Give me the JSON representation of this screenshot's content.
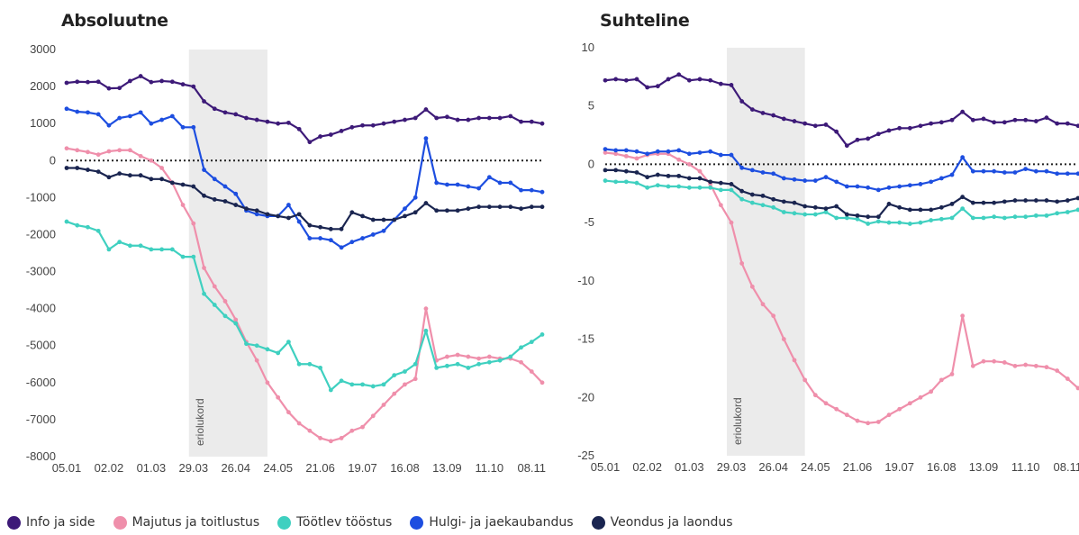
{
  "chart_data": [
    {
      "type": "line",
      "title": "Absoluutne",
      "x": [
        "05.01",
        "12.01",
        "19.01",
        "26.01",
        "02.02",
        "09.02",
        "16.02",
        "23.02",
        "01.03",
        "08.03",
        "15.03",
        "22.03",
        "29.03",
        "05.04",
        "12.04",
        "19.04",
        "26.04",
        "03.05",
        "10.05",
        "17.05",
        "24.05",
        "31.05",
        "07.06",
        "14.06",
        "21.06",
        "28.06",
        "05.07",
        "12.07",
        "19.07",
        "26.07",
        "02.08",
        "09.08",
        "16.08",
        "23.08",
        "30.08",
        "06.09",
        "13.09",
        "20.09",
        "27.09",
        "04.10",
        "11.10",
        "18.10",
        "25.10",
        "01.11",
        "08.11",
        "15.11"
      ],
      "xticks": [
        "05.01",
        "02.02",
        "01.03",
        "29.03",
        "26.04",
        "24.05",
        "21.06",
        "19.07",
        "16.08",
        "13.09",
        "11.10",
        "08.11"
      ],
      "yticks": [
        3000,
        2000,
        1000,
        0,
        -1000,
        -2000,
        -3000,
        -4000,
        -5000,
        -6000,
        -7000,
        -8000
      ],
      "ylim": [
        -8000,
        3000
      ],
      "zero_line": "dotted",
      "shaded_region": {
        "from": "26.03",
        "to": "17.05",
        "label": "eriolukord"
      },
      "series": [
        {
          "name": "Info ja side",
          "color": "#3d1a78",
          "values": [
            2100,
            2130,
            2120,
            2130,
            1950,
            1960,
            2150,
            2280,
            2120,
            2150,
            2130,
            2060,
            2000,
            1600,
            1400,
            1300,
            1250,
            1150,
            1100,
            1050,
            1000,
            1020,
            850,
            500,
            650,
            700,
            800,
            900,
            950,
            950,
            1000,
            1050,
            1100,
            1150,
            1380,
            1150,
            1180,
            1100,
            1100,
            1150,
            1150,
            1150,
            1200,
            1050,
            1050,
            1000
          ]
        },
        {
          "name": "Majutus ja toitlustus",
          "color": "#ef8fab",
          "values": [
            330,
            280,
            230,
            160,
            250,
            280,
            280,
            120,
            0,
            -200,
            -600,
            -1200,
            -1700,
            -2900,
            -3400,
            -3800,
            -4300,
            -4900,
            -5400,
            -6000,
            -6400,
            -6800,
            -7100,
            -7300,
            -7500,
            -7580,
            -7500,
            -7300,
            -7200,
            -6900,
            -6600,
            -6300,
            -6050,
            -5900,
            -4000,
            -5400,
            -5300,
            -5250,
            -5300,
            -5350,
            -5300,
            -5350,
            -5350,
            -5450,
            -5700,
            -6000
          ]
        },
        {
          "name": "Töötlev tööstus",
          "color": "#3fd0c0",
          "values": [
            -1650,
            -1750,
            -1800,
            -1900,
            -2400,
            -2200,
            -2300,
            -2300,
            -2400,
            -2400,
            -2400,
            -2600,
            -2600,
            -3600,
            -3900,
            -4200,
            -4400,
            -4950,
            -5000,
            -5100,
            -5200,
            -4900,
            -5500,
            -5500,
            -5600,
            -6200,
            -5950,
            -6050,
            -6050,
            -6100,
            -6050,
            -5800,
            -5700,
            -5500,
            -4600,
            -5600,
            -5550,
            -5500,
            -5600,
            -5500,
            -5450,
            -5400,
            -5300,
            -5050,
            -4900,
            -4700
          ]
        },
        {
          "name": "Hulgi- ja jaekaubandus",
          "color": "#1d4ee0",
          "values": [
            1400,
            1320,
            1300,
            1250,
            950,
            1150,
            1200,
            1300,
            1000,
            1100,
            1200,
            900,
            900,
            -250,
            -500,
            -700,
            -900,
            -1350,
            -1450,
            -1500,
            -1500,
            -1200,
            -1650,
            -2100,
            -2100,
            -2150,
            -2350,
            -2200,
            -2100,
            -2000,
            -1900,
            -1600,
            -1300,
            -1000,
            600,
            -600,
            -650,
            -650,
            -700,
            -750,
            -450,
            -600,
            -600,
            -800,
            -800,
            -850
          ]
        },
        {
          "name": "Veondus ja laondus",
          "color": "#1a2550",
          "values": [
            -200,
            -200,
            -250,
            -300,
            -450,
            -350,
            -400,
            -400,
            -500,
            -500,
            -600,
            -650,
            -700,
            -950,
            -1050,
            -1100,
            -1200,
            -1300,
            -1350,
            -1450,
            -1500,
            -1550,
            -1450,
            -1750,
            -1800,
            -1850,
            -1850,
            -1400,
            -1500,
            -1600,
            -1600,
            -1600,
            -1500,
            -1400,
            -1150,
            -1350,
            -1350,
            -1350,
            -1300,
            -1250,
            -1250,
            -1250,
            -1250,
            -1300,
            -1250,
            -1250
          ]
        }
      ]
    },
    {
      "type": "line",
      "title": "Suhteline",
      "x": [
        "05.01",
        "12.01",
        "19.01",
        "26.01",
        "02.02",
        "09.02",
        "16.02",
        "23.02",
        "01.03",
        "08.03",
        "15.03",
        "22.03",
        "29.03",
        "05.04",
        "12.04",
        "19.04",
        "26.04",
        "03.05",
        "10.05",
        "17.05",
        "24.05",
        "31.05",
        "07.06",
        "14.06",
        "21.06",
        "28.06",
        "05.07",
        "12.07",
        "19.07",
        "26.07",
        "02.08",
        "09.08",
        "16.08",
        "23.08",
        "30.08",
        "06.09",
        "13.09",
        "20.09",
        "27.09",
        "04.10",
        "11.10",
        "18.10",
        "25.10",
        "01.11",
        "08.11",
        "15.11"
      ],
      "xticks": [
        "05.01",
        "02.02",
        "01.03",
        "29.03",
        "26.04",
        "24.05",
        "21.06",
        "19.07",
        "16.08",
        "13.09",
        "11.10",
        "08.11"
      ],
      "yticks": [
        10,
        5,
        0,
        -5,
        -10,
        -15,
        -20,
        -25
      ],
      "ylim": [
        -25,
        10
      ],
      "zero_line": "dotted",
      "shaded_region": {
        "from": "26.03",
        "to": "17.05",
        "label": "eriolukord"
      },
      "series": [
        {
          "name": "Info ja side",
          "color": "#3d1a78",
          "values": [
            7.2,
            7.3,
            7.2,
            7.3,
            6.6,
            6.7,
            7.3,
            7.7,
            7.2,
            7.3,
            7.2,
            6.9,
            6.8,
            5.4,
            4.7,
            4.4,
            4.2,
            3.9,
            3.7,
            3.5,
            3.3,
            3.4,
            2.8,
            1.6,
            2.1,
            2.2,
            2.6,
            2.9,
            3.1,
            3.1,
            3.3,
            3.5,
            3.6,
            3.8,
            4.5,
            3.8,
            3.9,
            3.6,
            3.6,
            3.8,
            3.8,
            3.7,
            4.0,
            3.5,
            3.5,
            3.3
          ]
        },
        {
          "name": "Majutus ja toitlustus",
          "color": "#ef8fab",
          "values": [
            1.0,
            0.9,
            0.7,
            0.5,
            0.8,
            0.9,
            0.9,
            0.4,
            0.0,
            -0.6,
            -1.7,
            -3.5,
            -5.0,
            -8.5,
            -10.5,
            -12.0,
            -13.0,
            -15.0,
            -16.8,
            -18.5,
            -19.8,
            -20.5,
            -21.0,
            -21.5,
            -22.0,
            -22.2,
            -22.1,
            -21.5,
            -21.0,
            -20.5,
            -20.0,
            -19.5,
            -18.5,
            -18.0,
            -13.0,
            -17.3,
            -16.9,
            -16.9,
            -17.0,
            -17.3,
            -17.2,
            -17.3,
            -17.4,
            -17.7,
            -18.4,
            -19.2
          ]
        },
        {
          "name": "Töötlev tööstus",
          "color": "#3fd0c0",
          "values": [
            -1.4,
            -1.5,
            -1.5,
            -1.6,
            -2.0,
            -1.8,
            -1.9,
            -1.9,
            -2.0,
            -2.0,
            -2.0,
            -2.2,
            -2.2,
            -3.0,
            -3.3,
            -3.5,
            -3.7,
            -4.1,
            -4.2,
            -4.3,
            -4.3,
            -4.1,
            -4.6,
            -4.6,
            -4.7,
            -5.1,
            -4.9,
            -5.0,
            -5.0,
            -5.1,
            -5.0,
            -4.8,
            -4.7,
            -4.6,
            -3.8,
            -4.6,
            -4.6,
            -4.5,
            -4.6,
            -4.5,
            -4.5,
            -4.4,
            -4.4,
            -4.2,
            -4.1,
            -3.9
          ]
        },
        {
          "name": "Hulgi- ja jaekaubandus",
          "color": "#1d4ee0",
          "values": [
            1.3,
            1.2,
            1.2,
            1.1,
            0.9,
            1.1,
            1.1,
            1.2,
            0.9,
            1.0,
            1.1,
            0.8,
            0.8,
            -0.3,
            -0.5,
            -0.7,
            -0.8,
            -1.2,
            -1.3,
            -1.4,
            -1.4,
            -1.1,
            -1.5,
            -1.9,
            -1.9,
            -2.0,
            -2.2,
            -2.0,
            -1.9,
            -1.8,
            -1.7,
            -1.5,
            -1.2,
            -0.9,
            0.6,
            -0.6,
            -0.6,
            -0.6,
            -0.7,
            -0.7,
            -0.4,
            -0.6,
            -0.6,
            -0.8,
            -0.8,
            -0.8
          ]
        },
        {
          "name": "Veondus ja laondus",
          "color": "#1a2550",
          "values": [
            -0.5,
            -0.5,
            -0.6,
            -0.7,
            -1.1,
            -0.9,
            -1.0,
            -1.0,
            -1.2,
            -1.2,
            -1.5,
            -1.6,
            -1.7,
            -2.3,
            -2.6,
            -2.7,
            -3.0,
            -3.2,
            -3.3,
            -3.6,
            -3.7,
            -3.8,
            -3.6,
            -4.3,
            -4.4,
            -4.5,
            -4.5,
            -3.4,
            -3.7,
            -3.9,
            -3.9,
            -3.9,
            -3.7,
            -3.4,
            -2.8,
            -3.3,
            -3.3,
            -3.3,
            -3.2,
            -3.1,
            -3.1,
            -3.1,
            -3.1,
            -3.2,
            -3.1,
            -2.9
          ]
        }
      ]
    }
  ],
  "legend": [
    {
      "label": "Info ja side",
      "color": "#3d1a78"
    },
    {
      "label": "Majutus ja toitlustus",
      "color": "#ef8fab"
    },
    {
      "label": "Töötlev tööstus",
      "color": "#3fd0c0"
    },
    {
      "label": "Hulgi- ja jaekaubandus",
      "color": "#1d4ee0"
    },
    {
      "label": "Veondus ja laondus",
      "color": "#1a2550"
    }
  ]
}
